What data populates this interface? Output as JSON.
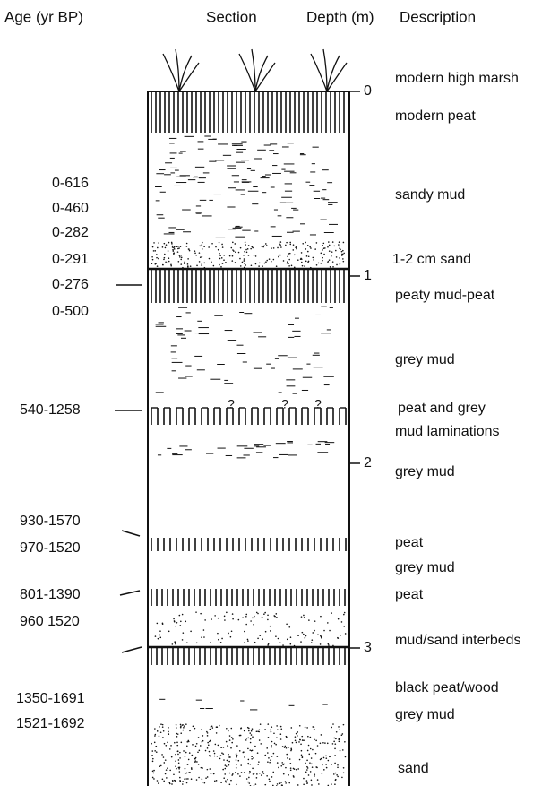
{
  "header": {
    "age": "Age (yr BP)",
    "section": "Section",
    "depth": "Depth (m)",
    "description": "Description"
  },
  "ages": [
    "0-616",
    "0-460",
    "0-282",
    "0-291",
    "0-276",
    "0-500",
    "540-1258",
    "930-1570",
    "970-1520",
    "801-1390",
    "960 1520",
    "1350-1691",
    "1521-1692"
  ],
  "depths": [
    "0",
    "1",
    "2",
    "3"
  ],
  "descriptions": [
    "modern high marsh",
    "modern peat",
    "sandy mud",
    "1-2 cm sand",
    "peaty mud-peat",
    "grey mud",
    "peat and grey",
    "mud laminations",
    "grey mud",
    "peat",
    "grey mud",
    "peat",
    "mud/sand interbeds",
    "black peat/wood",
    "grey mud",
    "sand"
  ],
  "section": {
    "marks": [
      "?",
      "?",
      "?"
    ]
  }
}
